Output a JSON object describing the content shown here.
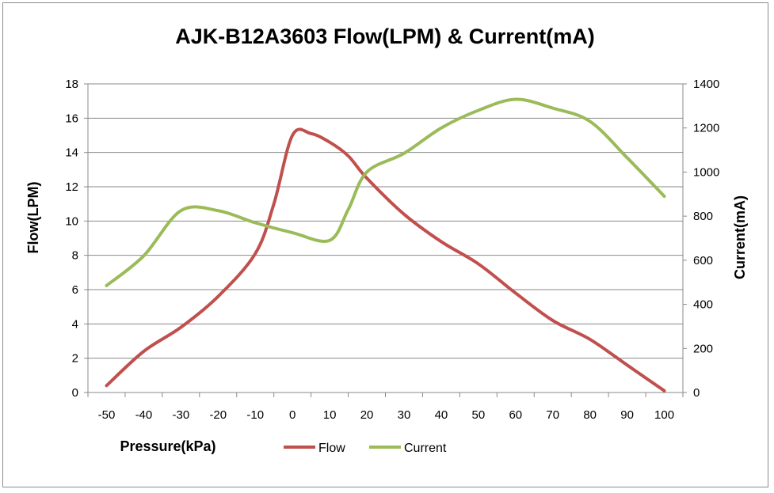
{
  "chart_data": {
    "type": "line",
    "title": "AJK-B12A3603 Flow(LPM) & Current(mA)",
    "xlabel": "Pressure(kPa)",
    "ylabel": "Flow(LPM)",
    "y2label": "Current(mA)",
    "categories": [
      -50,
      -40,
      -30,
      -20,
      -10,
      0,
      10,
      20,
      30,
      40,
      50,
      60,
      70,
      80,
      90,
      100
    ],
    "category_labels": [
      "-50",
      "-40",
      "-30",
      "-20",
      "-10",
      "0",
      "10",
      "20",
      "30",
      "40",
      "50",
      "60",
      "70",
      "80",
      "90",
      "100"
    ],
    "ylim": [
      0,
      18
    ],
    "y_ticks": [
      "0",
      "2",
      "4",
      "6",
      "8",
      "10",
      "12",
      "14",
      "16",
      "18"
    ],
    "y2lim": [
      0,
      1400
    ],
    "y2_ticks": [
      "0",
      "200",
      "400",
      "600",
      "800",
      "1000",
      "1200",
      "1400"
    ],
    "grid": true,
    "legend_position": "bottom",
    "series": [
      {
        "name": "Flow",
        "axis": "left",
        "color": "#c0504d",
        "smooth": true,
        "x": [
          -50,
          -40,
          -30,
          -20,
          -10,
          -5,
          0,
          5,
          10,
          15,
          20,
          30,
          40,
          50,
          60,
          70,
          80,
          90,
          100
        ],
        "values": [
          0.4,
          2.4,
          3.8,
          5.6,
          8.1,
          11.0,
          15.0,
          15.1,
          14.6,
          13.8,
          12.5,
          10.4,
          8.8,
          7.5,
          5.8,
          4.2,
          3.1,
          1.6,
          0.1
        ]
      },
      {
        "name": "Current",
        "axis": "right",
        "color": "#9bbb59",
        "smooth": true,
        "x": [
          -50,
          -40,
          -30,
          -20,
          -10,
          0,
          10,
          15,
          20,
          30,
          40,
          50,
          60,
          70,
          80,
          90,
          100
        ],
        "values": [
          485,
          620,
          825,
          825,
          770,
          725,
          690,
          830,
          1000,
          1085,
          1200,
          1280,
          1330,
          1290,
          1230,
          1065,
          890
        ]
      }
    ]
  }
}
